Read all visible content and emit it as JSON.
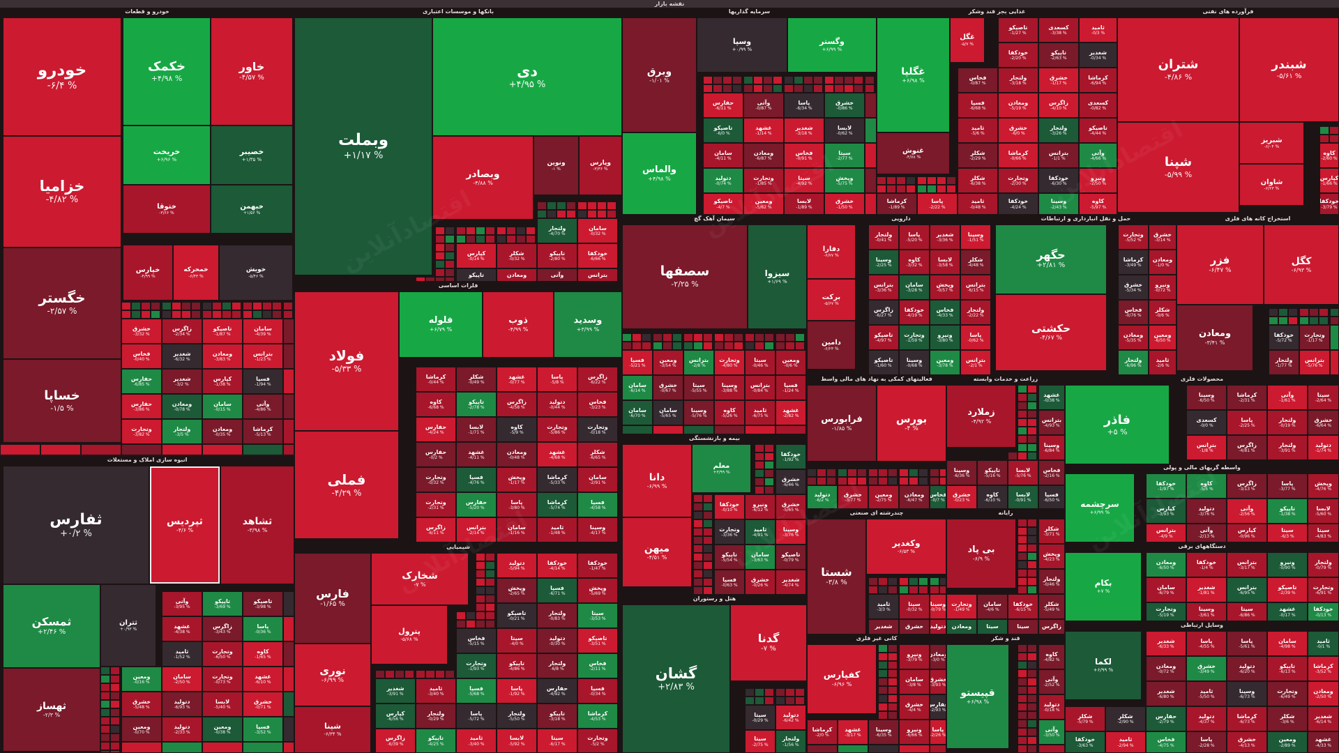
{
  "header": {
    "title": "نقشه بازار"
  },
  "watermark": "اقتصادآنلاین",
  "palette": {
    "neg_strong": "#cc1a30",
    "neg_mid": "#a8162b",
    "neg_weak": "#7a1a2a",
    "neutral": "#352a30",
    "pos_weak": "#1c5a38",
    "pos_mid": "#1e8a45",
    "pos_strong": "#17a845"
  },
  "sectors": [
    {
      "name": "خودرو و قطعات",
      "tiles": [
        {
          "n": "خودرو",
          "p": "-۶/۴ %",
          "c": "neg_strong"
        },
        {
          "n": "خکمک",
          "p": "+۴/۹۸ %",
          "c": "pos_strong"
        },
        {
          "n": "خاور",
          "p": "-۴/۵۷ %",
          "c": "neg_strong"
        },
        {
          "n": "خزامیا",
          "p": "-۴/۸۲ %",
          "c": "neg_strong"
        },
        {
          "n": "خریخت",
          "p": "+۶/۹۶ %",
          "c": "pos_strong"
        },
        {
          "n": "خصیبر",
          "p": "+۱/۳۵ %",
          "c": "pos_weak"
        },
        {
          "n": "خگستر",
          "p": "-۲/۵۷ %",
          "c": "neg_weak"
        },
        {
          "n": "ختوقا",
          "p": "-۳/۶۶ %",
          "c": "neg_mid"
        },
        {
          "n": "خبهمن",
          "p": "+۱/۵۶ %",
          "c": "pos_weak"
        },
        {
          "n": "خساپا",
          "p": "-۱/۵ %",
          "c": "neg_weak"
        },
        {
          "n": "خپارس",
          "p": "-۴/۹۹ %",
          "c": "neg_mid"
        },
        {
          "n": "خمحرکه",
          "p": "-۶/۴۳ %",
          "c": "neg_strong"
        },
        {
          "n": "خویش",
          "p": "-۵/۴۶ %",
          "c": "neutral"
        }
      ]
    },
    {
      "name": "انبوه سازی املاک و مستغلات",
      "tiles": [
        {
          "n": "ثفارس",
          "p": "+۰/۲ %",
          "c": "neutral"
        },
        {
          "n": "ثپردیس",
          "p": "-۴/۶ %",
          "c": "neg_strong"
        },
        {
          "n": "ثشاهد",
          "p": "-۳/۹۸ %",
          "c": "neg_mid"
        },
        {
          "n": "ثمسکن",
          "p": "+۲/۴۶ %",
          "c": "pos_mid"
        },
        {
          "n": "ثهساز",
          "p": "-۲/۳ %",
          "c": "neg_weak"
        },
        {
          "n": "ثتران",
          "p": "+۰/۹۳ %",
          "c": "neutral"
        }
      ]
    },
    {
      "name": "بانکها و موسسات اعتباری",
      "tiles": [
        {
          "n": "وبملت",
          "p": "+۱/۱۷ %",
          "c": "pos_weak"
        },
        {
          "n": "دی",
          "p": "+۴/۹۵ %",
          "c": "pos_strong"
        },
        {
          "n": "وبصادر",
          "p": "-۴/۸۸ %",
          "c": "neg_strong"
        },
        {
          "n": "ونوین",
          "p": "-۱ %",
          "c": "neg_weak"
        },
        {
          "n": "وپارس",
          "p": "-۳/۳۶ %",
          "c": "neg_mid"
        }
      ]
    },
    {
      "name": "فلزات اساسی",
      "tiles": [
        {
          "n": "فولاد",
          "p": "-۵/۳۳ %",
          "c": "neg_strong"
        },
        {
          "n": "فلوله",
          "p": "+۶/۷۹ %",
          "c": "pos_strong"
        },
        {
          "n": "ذوب",
          "p": "-۴/۹۹ %",
          "c": "neg_strong"
        },
        {
          "n": "وسدید",
          "p": "+۳/۹۹ %",
          "c": "pos_mid"
        },
        {
          "n": "فملی",
          "p": "-۴/۲۹ %",
          "c": "neg_strong"
        }
      ]
    },
    {
      "name": "شیمیایی",
      "tiles": [
        {
          "n": "فارس",
          "p": "-۱/۶۵ %",
          "c": "neg_weak"
        },
        {
          "n": "شخارک",
          "p": "-۷ %",
          "c": "neg_strong"
        },
        {
          "n": "نوری",
          "p": "-۶/۹۹ %",
          "c": "neg_strong"
        },
        {
          "n": "پترول",
          "p": "-۵/۶۸ %",
          "c": "neg_strong"
        },
        {
          "n": "شپنا",
          "p": "-۶/۳۴ %",
          "c": "neg_mid"
        }
      ]
    },
    {
      "name": "سرمایه گذاریها",
      "tiles": [
        {
          "n": "وبرق",
          "p": "-۱/۰۱ %",
          "c": "neg_weak"
        },
        {
          "n": "وسپا",
          "p": "+۰/۹۹ %",
          "c": "neutral"
        },
        {
          "n": "وگستر",
          "p": "+۶/۹۹ %",
          "c": "pos_strong"
        },
        {
          "n": "والماس",
          "p": "+۴/۹۸ %",
          "c": "pos_strong"
        }
      ]
    },
    {
      "name": "سیمان آهک گچ",
      "tiles": [
        {
          "n": "سصفها",
          "p": "-۲/۲۵ %",
          "c": "neg_weak"
        },
        {
          "n": "سیزوا",
          "p": "+۱/۶۹ %",
          "c": "pos_weak"
        }
      ]
    },
    {
      "name": "بیمه و بازنشستگی",
      "tiles": [
        {
          "n": "دانا",
          "p": "-۶/۹۹ %",
          "c": "neg_strong"
        },
        {
          "n": "معلم",
          "p": "+۳/۹۹ %",
          "c": "pos_mid"
        },
        {
          "n": "میهن",
          "p": "-۴/۵۱ %",
          "c": "neg_strong"
        }
      ]
    },
    {
      "name": "هتل و رستوران",
      "tiles": [
        {
          "n": "گشان",
          "p": "+۲/۸۳ %",
          "c": "pos_weak"
        },
        {
          "n": "گدنا",
          "p": "-۷ %",
          "c": "neg_strong"
        }
      ]
    },
    {
      "name": "غذایی بجز قند وشکر",
      "tiles": [
        {
          "n": "غگلپا",
          "p": "+۶/۹۸ %",
          "c": "pos_strong"
        },
        {
          "n": "غگل",
          "p": "-۵/۷ %",
          "c": "neg_strong"
        },
        {
          "n": "غنوش",
          "p": "-۴/۷۸ %",
          "c": "neg_weak"
        }
      ]
    },
    {
      "name": "فرآورده های نفتی",
      "tiles": [
        {
          "n": "شتران",
          "p": "-۴/۸۶ %",
          "c": "neg_strong"
        },
        {
          "n": "شبندر",
          "p": "-۵/۶۱ %",
          "c": "neg_strong"
        },
        {
          "n": "شپنا",
          "p": "-۵/۹۹ %",
          "c": "neg_strong"
        },
        {
          "n": "شبریز",
          "p": "-۶/۰۴ %",
          "c": "neg_strong"
        },
        {
          "n": "شاوان",
          "p": "-۶/۲۳ %",
          "c": "neg_strong"
        }
      ]
    },
    {
      "name": "دارویی",
      "tiles": [
        {
          "n": "دفارا",
          "p": "-۶/۷۷ %",
          "c": "neg_strong"
        },
        {
          "n": "برکت",
          "p": "-۵/۶۷ %",
          "c": "neg_strong"
        },
        {
          "n": "دامین",
          "p": "-۶/۲۳ %",
          "c": "neg_weak"
        }
      ]
    },
    {
      "name": "حمل و نقل انبارداری و ارتباطات",
      "tiles": [
        {
          "n": "حگهر",
          "p": "+۲/۸۱ %",
          "c": "pos_mid"
        },
        {
          "n": "حکشتی",
          "p": "-۴/۶۷ %",
          "c": "neg_strong"
        }
      ]
    },
    {
      "name": "استخراج کانه های فلزی",
      "tiles": [
        {
          "n": "فزر",
          "p": "-۶/۴۷ %",
          "c": "neg_strong"
        },
        {
          "n": "کگل",
          "p": "-۶/۹۳ %",
          "c": "neg_strong"
        },
        {
          "n": "ومعادن",
          "p": "-۳/۴۱ %",
          "c": "neg_weak"
        }
      ]
    },
    {
      "name": "فعالیتهای کمکی به نهاد های مالی واسط",
      "tiles": [
        {
          "n": "فرابورس",
          "p": "-۱/۸۵ %",
          "c": "neg_weak"
        },
        {
          "n": "بورس",
          "p": "-۴ %",
          "c": "neg_strong"
        }
      ]
    },
    {
      "name": "زراعت و خدمات وابسته",
      "tiles": [
        {
          "n": "زملارد",
          "p": "-۴/۹۲ %",
          "c": "neg_mid"
        }
      ]
    },
    {
      "name": "محصولات فلزی",
      "tiles": [
        {
          "n": "فاذر",
          "p": "+۵ %",
          "c": "pos_strong"
        }
      ]
    },
    {
      "name": "چندرشته ای صنعتی",
      "tiles": [
        {
          "n": "شستا",
          "p": "-۳/۸ %",
          "c": "neg_weak"
        },
        {
          "n": "وکغدیر",
          "p": "-۶/۵۳ %",
          "c": "neg_strong"
        }
      ]
    },
    {
      "name": "رایانه",
      "tiles": [
        {
          "n": "بی پاد",
          "p": "-۶/۹ %",
          "c": "neg_mid"
        }
      ]
    },
    {
      "name": "کانی غیر فلزی",
      "tiles": [
        {
          "n": "کفپارس",
          "p": "-۶/۹۶ %",
          "c": "neg_strong"
        }
      ]
    },
    {
      "name": "قند و شکر",
      "tiles": [
        {
          "n": "قپیستو",
          "p": "+۶/۹۸ %",
          "c": "pos_mid"
        }
      ]
    },
    {
      "name": "واسطه گریهای مالی و پولی",
      "tiles": [
        {
          "n": "سرچشمه",
          "p": "+۶/۹۹ %",
          "c": "pos_strong"
        }
      ]
    },
    {
      "name": "دستگاههای برقی",
      "tiles": [
        {
          "n": "بکام",
          "p": "+۷ %",
          "c": "pos_strong"
        }
      ]
    },
    {
      "name": "وسایل ارتباطی",
      "tiles": [
        {
          "n": "لکما",
          "p": "+۶/۹۹ %",
          "c": "pos_weak"
        }
      ]
    }
  ]
}
